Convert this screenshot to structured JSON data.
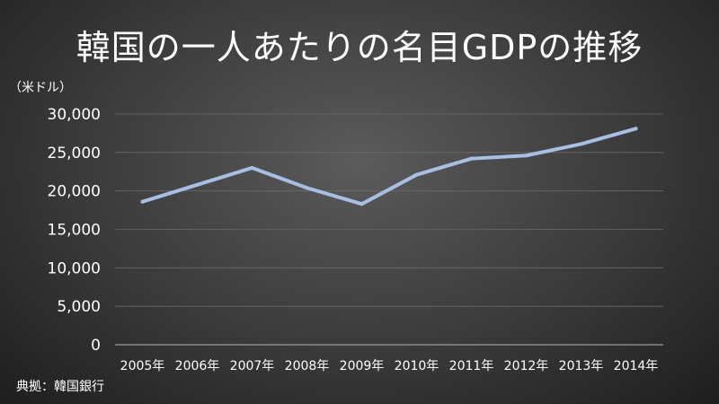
{
  "chart_data": {
    "type": "line",
    "title": "韓国の一人あたりの名目GDPの推移",
    "ylabel": "（米ドル）",
    "xlabel": "",
    "source": "典拠：韓国銀行",
    "categories": [
      "2005年",
      "2006年",
      "2007年",
      "2008年",
      "2009年",
      "2010年",
      "2011年",
      "2012年",
      "2013年",
      "2014年"
    ],
    "series": [
      {
        "values": [
          18600,
          20800,
          23000,
          20400,
          18300,
          22100,
          24200,
          24600,
          26100,
          28100
        ]
      }
    ],
    "ylim": [
      0,
      30000
    ],
    "yticks": [
      0,
      5000,
      10000,
      15000,
      20000,
      25000,
      30000
    ],
    "ytick_labels": [
      "0",
      "5,000",
      "10,000",
      "15,000",
      "20,000",
      "25,000",
      "30,000"
    ],
    "grid": true,
    "legend": "none",
    "colors": {
      "line": "#a7bfe3",
      "grid": "#6a6a6a",
      "axis": "#9a9a9a",
      "text": "#ffffff"
    }
  }
}
